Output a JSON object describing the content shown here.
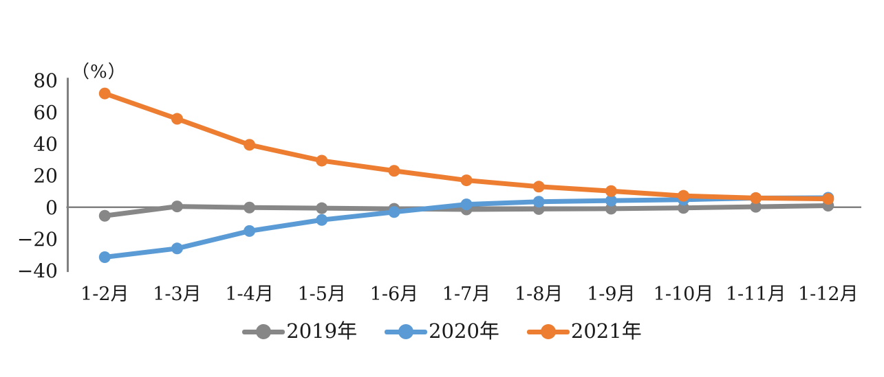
{
  "chart_data": {
    "type": "line",
    "title": "",
    "unit_label": "（%）",
    "xlabel": "",
    "ylabel": "（%）",
    "categories": [
      "1-2月",
      "1-3月",
      "1-4月",
      "1-5月",
      "1-6月",
      "1-7月",
      "1-8月",
      "1-9月",
      "1-10月",
      "1-11月",
      "1-12月"
    ],
    "series": [
      {
        "name": "2019年",
        "color": "#878787",
        "values": [
          -5.4,
          0.5,
          -0.2,
          -0.6,
          -1.0,
          -1.4,
          -1.1,
          -0.9,
          -0.4,
          0.3,
          1.0
        ]
      },
      {
        "name": "2020年",
        "color": "#5B9BD5",
        "values": [
          -31.5,
          -26.0,
          -15.0,
          -8.0,
          -3.0,
          1.8,
          3.5,
          4.2,
          4.8,
          5.8,
          6.0
        ]
      },
      {
        "name": "2021年",
        "color": "#ED7D31",
        "values": [
          71.8,
          55.8,
          39.4,
          29.4,
          23.0,
          17.0,
          13.0,
          10.2,
          7.2,
          5.8,
          5.3
        ]
      }
    ],
    "ylim": [
      -40,
      80
    ],
    "ytick_interval": 20,
    "yticks": [
      {
        "value": 80,
        "label": "80"
      },
      {
        "value": 60,
        "label": "60"
      },
      {
        "value": 40,
        "label": "40"
      },
      {
        "value": 20,
        "label": "20"
      },
      {
        "value": 0,
        "label": "0"
      },
      {
        "value": -20,
        "label": "−20"
      },
      {
        "value": -40,
        "label": "−40"
      }
    ],
    "grid": false,
    "legend_position": "bottom",
    "axis_color": "#808080"
  }
}
